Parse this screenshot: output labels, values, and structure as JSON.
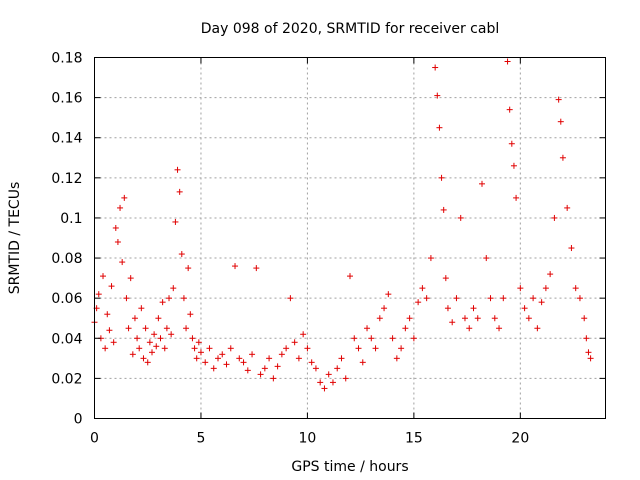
{
  "chart_data": {
    "type": "scatter",
    "title": "Day 098 of 2020, SRMTID for receiver cabl",
    "xlabel": "GPS time / hours",
    "ylabel": "SRMTID / TECUs",
    "xlim": [
      0,
      24
    ],
    "ylim": [
      0,
      0.18
    ],
    "xticks": [
      0,
      5,
      10,
      15,
      20
    ],
    "xtick_labels": [
      "0",
      "5",
      "10",
      "15",
      "20"
    ],
    "yticks": [
      0,
      0.02,
      0.04,
      0.06,
      0.08,
      0.1,
      0.12,
      0.14,
      0.16,
      0.18
    ],
    "ytick_labels": [
      "0",
      "0.02",
      "0.04",
      "0.06",
      "0.08",
      "0.1",
      "0.12",
      "0.14",
      "0.16",
      "0.18"
    ],
    "grid": true,
    "marker": "+",
    "color": "#e00000",
    "series": [
      {
        "name": "SRMTID",
        "points": [
          [
            0.0,
            0.048
          ],
          [
            0.1,
            0.055
          ],
          [
            0.2,
            0.062
          ],
          [
            0.3,
            0.04
          ],
          [
            0.4,
            0.071
          ],
          [
            0.5,
            0.035
          ],
          [
            0.6,
            0.052
          ],
          [
            0.7,
            0.044
          ],
          [
            0.8,
            0.066
          ],
          [
            0.9,
            0.038
          ],
          [
            1.0,
            0.095
          ],
          [
            1.1,
            0.088
          ],
          [
            1.2,
            0.105
          ],
          [
            1.3,
            0.078
          ],
          [
            1.4,
            0.11
          ],
          [
            1.5,
            0.06
          ],
          [
            1.6,
            0.045
          ],
          [
            1.7,
            0.07
          ],
          [
            1.8,
            0.032
          ],
          [
            1.9,
            0.05
          ],
          [
            2.0,
            0.04
          ],
          [
            2.1,
            0.035
          ],
          [
            2.2,
            0.055
          ],
          [
            2.3,
            0.03
          ],
          [
            2.4,
            0.045
          ],
          [
            2.5,
            0.028
          ],
          [
            2.6,
            0.038
          ],
          [
            2.7,
            0.033
          ],
          [
            2.8,
            0.042
          ],
          [
            2.9,
            0.036
          ],
          [
            3.0,
            0.05
          ],
          [
            3.1,
            0.04
          ],
          [
            3.2,
            0.058
          ],
          [
            3.3,
            0.035
          ],
          [
            3.4,
            0.045
          ],
          [
            3.5,
            0.06
          ],
          [
            3.6,
            0.042
          ],
          [
            3.7,
            0.065
          ],
          [
            3.8,
            0.098
          ],
          [
            3.9,
            0.124
          ],
          [
            4.0,
            0.113
          ],
          [
            4.1,
            0.082
          ],
          [
            4.2,
            0.06
          ],
          [
            4.3,
            0.045
          ],
          [
            4.4,
            0.075
          ],
          [
            4.5,
            0.052
          ],
          [
            4.6,
            0.04
          ],
          [
            4.7,
            0.035
          ],
          [
            4.8,
            0.03
          ],
          [
            4.9,
            0.038
          ],
          [
            5.0,
            0.033
          ],
          [
            5.2,
            0.028
          ],
          [
            5.4,
            0.035
          ],
          [
            5.6,
            0.025
          ],
          [
            5.8,
            0.03
          ],
          [
            6.0,
            0.032
          ],
          [
            6.2,
            0.027
          ],
          [
            6.4,
            0.035
          ],
          [
            6.6,
            0.076
          ],
          [
            6.8,
            0.03
          ],
          [
            7.0,
            0.028
          ],
          [
            7.2,
            0.024
          ],
          [
            7.4,
            0.032
          ],
          [
            7.6,
            0.075
          ],
          [
            7.8,
            0.022
          ],
          [
            8.0,
            0.025
          ],
          [
            8.2,
            0.03
          ],
          [
            8.4,
            0.02
          ],
          [
            8.6,
            0.026
          ],
          [
            8.8,
            0.032
          ],
          [
            9.0,
            0.035
          ],
          [
            9.2,
            0.06
          ],
          [
            9.4,
            0.038
          ],
          [
            9.6,
            0.03
          ],
          [
            9.8,
            0.042
          ],
          [
            10.0,
            0.035
          ],
          [
            10.2,
            0.028
          ],
          [
            10.4,
            0.025
          ],
          [
            10.6,
            0.018
          ],
          [
            10.8,
            0.015
          ],
          [
            11.0,
            0.022
          ],
          [
            11.2,
            0.018
          ],
          [
            11.4,
            0.025
          ],
          [
            11.6,
            0.03
          ],
          [
            11.8,
            0.02
          ],
          [
            12.0,
            0.071
          ],
          [
            12.2,
            0.04
          ],
          [
            12.4,
            0.035
          ],
          [
            12.6,
            0.028
          ],
          [
            12.8,
            0.045
          ],
          [
            13.0,
            0.04
          ],
          [
            13.2,
            0.035
          ],
          [
            13.4,
            0.05
          ],
          [
            13.6,
            0.055
          ],
          [
            13.8,
            0.062
          ],
          [
            14.0,
            0.04
          ],
          [
            14.2,
            0.03
          ],
          [
            14.4,
            0.035
          ],
          [
            14.6,
            0.045
          ],
          [
            14.8,
            0.05
          ],
          [
            15.0,
            0.04
          ],
          [
            15.2,
            0.058
          ],
          [
            15.4,
            0.065
          ],
          [
            15.6,
            0.06
          ],
          [
            15.8,
            0.08
          ],
          [
            16.0,
            0.175
          ],
          [
            16.1,
            0.161
          ],
          [
            16.2,
            0.145
          ],
          [
            16.3,
            0.12
          ],
          [
            16.4,
            0.104
          ],
          [
            16.5,
            0.07
          ],
          [
            16.6,
            0.055
          ],
          [
            16.8,
            0.048
          ],
          [
            17.0,
            0.06
          ],
          [
            17.2,
            0.1
          ],
          [
            17.4,
            0.05
          ],
          [
            17.6,
            0.045
          ],
          [
            17.8,
            0.055
          ],
          [
            18.0,
            0.05
          ],
          [
            18.2,
            0.117
          ],
          [
            18.4,
            0.08
          ],
          [
            18.6,
            0.06
          ],
          [
            18.8,
            0.05
          ],
          [
            19.0,
            0.045
          ],
          [
            19.2,
            0.06
          ],
          [
            19.4,
            0.178
          ],
          [
            19.5,
            0.154
          ],
          [
            19.6,
            0.137
          ],
          [
            19.7,
            0.126
          ],
          [
            19.8,
            0.11
          ],
          [
            20.0,
            0.065
          ],
          [
            20.2,
            0.055
          ],
          [
            20.4,
            0.05
          ],
          [
            20.6,
            0.06
          ],
          [
            20.8,
            0.045
          ],
          [
            21.0,
            0.058
          ],
          [
            21.2,
            0.065
          ],
          [
            21.4,
            0.072
          ],
          [
            21.6,
            0.1
          ],
          [
            21.8,
            0.159
          ],
          [
            21.9,
            0.148
          ],
          [
            22.0,
            0.13
          ],
          [
            22.2,
            0.105
          ],
          [
            22.4,
            0.085
          ],
          [
            22.6,
            0.065
          ],
          [
            22.8,
            0.06
          ],
          [
            23.0,
            0.05
          ],
          [
            23.1,
            0.04
          ],
          [
            23.2,
            0.033
          ],
          [
            23.3,
            0.03
          ]
        ]
      }
    ]
  }
}
